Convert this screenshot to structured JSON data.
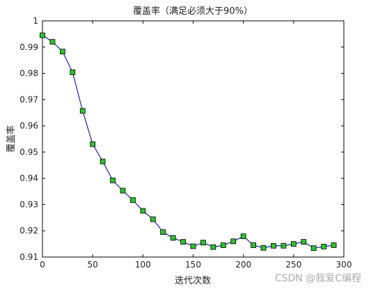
{
  "chart_data": {
    "type": "line",
    "title": "覆盖率（满足必须大于90%）",
    "xlabel": "迭代次数",
    "ylabel": "覆盖率",
    "xlim": [
      0,
      300
    ],
    "ylim": [
      0.91,
      1.0
    ],
    "x_ticks": [
      "0",
      "50",
      "100",
      "150",
      "200",
      "250",
      "300"
    ],
    "y_ticks": [
      "0.91",
      "0.92",
      "0.93",
      "0.94",
      "0.95",
      "0.96",
      "0.97",
      "0.98",
      "0.99",
      "1"
    ],
    "grid": false,
    "legend": "none",
    "line_color": "#1f1fbf",
    "marker": "square",
    "marker_color": "#2fc02f",
    "marker_edge_color": "#000000",
    "series": [
      {
        "x": [
          0,
          10,
          20,
          30,
          40,
          50,
          60,
          70,
          80,
          90,
          100,
          110,
          120,
          130,
          140,
          150,
          160,
          170,
          180,
          190,
          200,
          210,
          220,
          230,
          240,
          250,
          260,
          270,
          280,
          290
        ],
        "values": [
          0.9945,
          0.992,
          0.9883,
          0.9804,
          0.9657,
          0.953,
          0.9464,
          0.9392,
          0.9353,
          0.9317,
          0.9276,
          0.9244,
          0.9195,
          0.9173,
          0.9158,
          0.9141,
          0.9155,
          0.9138,
          0.9145,
          0.916,
          0.9179,
          0.9145,
          0.9135,
          0.9143,
          0.9143,
          0.915,
          0.9158,
          0.9134,
          0.914,
          0.9145
        ]
      }
    ]
  },
  "watermark": "CSDN @我爱C编程"
}
